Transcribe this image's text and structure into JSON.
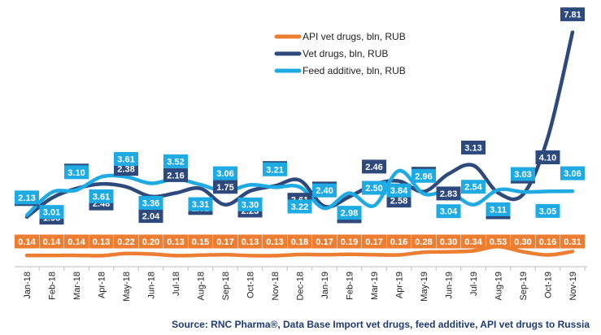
{
  "chart_data": {
    "type": "line",
    "categories": [
      "Jan-18",
      "Feb-18",
      "Mar-18",
      "Apr-18",
      "May-18",
      "Jun-18",
      "Jul-18",
      "Aug-18",
      "Sep-18",
      "Oct-18",
      "Nov-18",
      "Dec-18",
      "Jan-19",
      "Feb-19",
      "Mar-19",
      "Apr-19",
      "May-19",
      "Jun-19",
      "Jul-19",
      "Aug-19",
      "Sep-19",
      "Oct-19",
      "Nov-19"
    ],
    "series": [
      {
        "name": "API vet drugs, bln, RUB",
        "color": "#ed7d31",
        "values": [
          0.14,
          0.14,
          0.14,
          0.13,
          0.22,
          0.2,
          0.13,
          0.15,
          0.17,
          0.13,
          0.13,
          0.18,
          0.17,
          0.19,
          0.17,
          0.16,
          0.28,
          0.3,
          0.34,
          0.53,
          0.3,
          0.16,
          0.31
        ]
      },
      {
        "name": "Vet drugs, bln, RUB",
        "color": "#2e4a7d",
        "values": [
          1.32,
          1.98,
          2.32,
          2.48,
          2.38,
          2.04,
          2.16,
          2.32,
          1.75,
          2.23,
          2.41,
          2.61,
          1.69,
          2.03,
          2.46,
          2.58,
          2.21,
          2.83,
          3.13,
          2.17,
          2.11,
          4.1,
          7.81
        ]
      },
      {
        "name": "Feed additive, bln, RUB",
        "color": "#1eabe3",
        "values": [
          2.13,
          3.01,
          3.1,
          3.61,
          3.61,
          3.36,
          3.52,
          3.31,
          3.06,
          3.3,
          3.21,
          3.22,
          2.4,
          2.98,
          2.5,
          3.84,
          2.96,
          3.04,
          2.54,
          3.11,
          3.03,
          3.05,
          3.06
        ]
      }
    ],
    "legend_position": "top-center",
    "grid": false
  },
  "source_text": "Source: RNC Pharma®, Data Base Import vet drugs, feed additive, API vet drugs to Russia"
}
